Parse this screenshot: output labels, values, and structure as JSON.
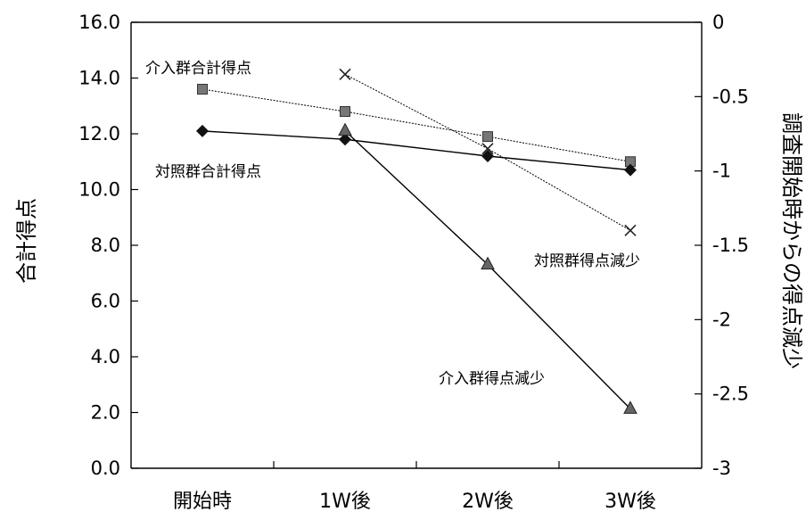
{
  "chart_data": {
    "type": "line",
    "categories": [
      "開始時",
      "1W後",
      "2W後",
      "3W後"
    ],
    "left_axis": {
      "label": "合計得点",
      "ylim": [
        0,
        16
      ],
      "ticks": [
        "0.0",
        "2.0",
        "4.0",
        "6.0",
        "8.0",
        "10.0",
        "12.0",
        "14.0",
        "16.0"
      ]
    },
    "right_axis": {
      "label": "調査開始時からの得点減少",
      "ylim": [
        -3,
        0
      ],
      "ticks": [
        "-3",
        "-2.5",
        "-2",
        "-1.5",
        "-1",
        "-0.5",
        "0"
      ]
    },
    "series": [
      {
        "name": "介入群合計得点",
        "axis": "left",
        "marker": "square",
        "line_style": "dotted",
        "values": [
          13.6,
          12.8,
          11.9,
          11.0
        ]
      },
      {
        "name": "対照群合計得点",
        "axis": "left",
        "marker": "diamond",
        "line_style": "solid",
        "values": [
          12.1,
          11.8,
          11.2,
          10.7
        ]
      },
      {
        "name": "対照群得点減少",
        "axis": "right",
        "marker": "x",
        "line_style": "dotted",
        "values": [
          null,
          -0.35,
          -0.85,
          -1.4
        ]
      },
      {
        "name": "介入群得点減少",
        "axis": "right",
        "marker": "triangle",
        "line_style": "solid",
        "values": [
          null,
          -0.73,
          -1.63,
          -2.6
        ]
      }
    ],
    "colors": {
      "line": "#000000",
      "marker": "#333333"
    },
    "grid": false,
    "legend": "none (inline labels)"
  }
}
